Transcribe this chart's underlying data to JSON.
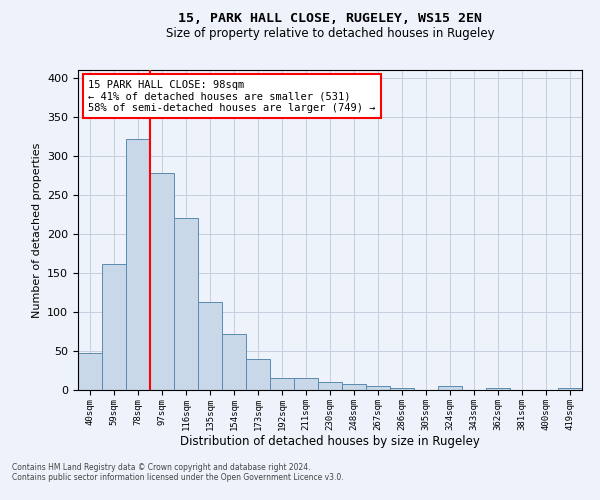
{
  "title_line1": "15, PARK HALL CLOSE, RUGELEY, WS15 2EN",
  "title_line2": "Size of property relative to detached houses in Rugeley",
  "xlabel": "Distribution of detached houses by size in Rugeley",
  "ylabel": "Number of detached properties",
  "categories": [
    "40sqm",
    "59sqm",
    "78sqm",
    "97sqm",
    "116sqm",
    "135sqm",
    "154sqm",
    "173sqm",
    "192sqm",
    "211sqm",
    "230sqm",
    "248sqm",
    "267sqm",
    "286sqm",
    "305sqm",
    "324sqm",
    "343sqm",
    "362sqm",
    "381sqm",
    "400sqm",
    "419sqm"
  ],
  "values": [
    47,
    162,
    322,
    278,
    220,
    113,
    72,
    40,
    16,
    15,
    10,
    8,
    5,
    3,
    0,
    5,
    0,
    2,
    0,
    0,
    2
  ],
  "bar_color": "#c8d8e8",
  "bar_edge_color": "#5a8ab0",
  "grid_color": "#c0c8d8",
  "background_color": "#eef2fa",
  "red_line_index": 3,
  "annotation_text": "15 PARK HALL CLOSE: 98sqm\n← 41% of detached houses are smaller (531)\n58% of semi-detached houses are larger (749) →",
  "annotation_box_color": "white",
  "annotation_box_edge": "red",
  "footer_line1": "Contains HM Land Registry data © Crown copyright and database right 2024.",
  "footer_line2": "Contains public sector information licensed under the Open Government Licence v3.0.",
  "ylim": [
    0,
    410
  ],
  "yticks": [
    0,
    50,
    100,
    150,
    200,
    250,
    300,
    350,
    400
  ]
}
